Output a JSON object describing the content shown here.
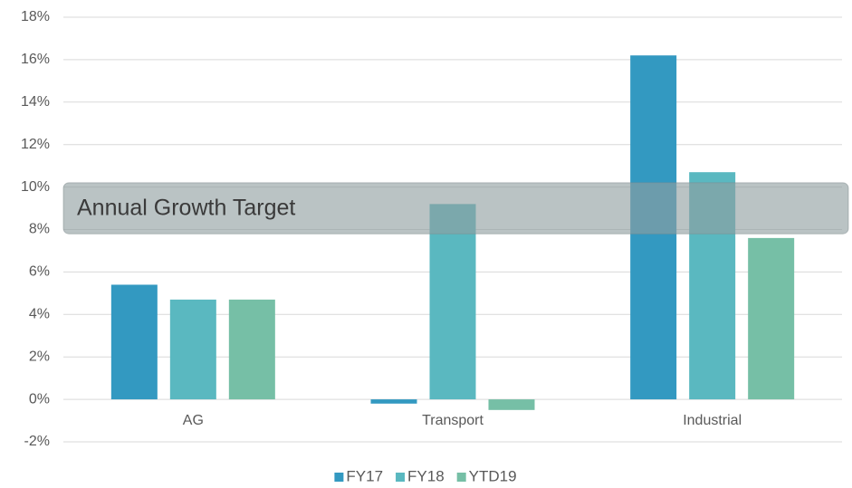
{
  "chart_data": {
    "type": "bar",
    "categories": [
      "AG",
      "Transport",
      "Industrial"
    ],
    "series": [
      {
        "name": "FY17",
        "color": "#3399c1",
        "values": [
          5.4,
          -0.2,
          16.2
        ]
      },
      {
        "name": "FY18",
        "color": "#5ab8c0",
        "values": [
          4.7,
          9.2,
          10.7
        ]
      },
      {
        "name": "YTD19",
        "color": "#76bfa6",
        "values": [
          4.7,
          -0.5,
          7.6
        ]
      }
    ],
    "ylim": [
      -2,
      18
    ],
    "yticks": [
      {
        "value": -2,
        "label": "-2%"
      },
      {
        "value": 0,
        "label": "0%"
      },
      {
        "value": 2,
        "label": "2%"
      },
      {
        "value": 4,
        "label": "4%"
      },
      {
        "value": 6,
        "label": "6%"
      },
      {
        "value": 8,
        "label": "8%"
      },
      {
        "value": 10,
        "label": "10%"
      },
      {
        "value": 12,
        "label": "12%"
      },
      {
        "value": 14,
        "label": "14%"
      },
      {
        "value": 16,
        "label": "16%"
      },
      {
        "value": 18,
        "label": "18%"
      }
    ],
    "grid": true,
    "legend": "bottom",
    "target_band": {
      "label": "Annual Growth Target",
      "range": [
        7.8,
        10.2
      ],
      "color": "#8f9e9f"
    }
  }
}
